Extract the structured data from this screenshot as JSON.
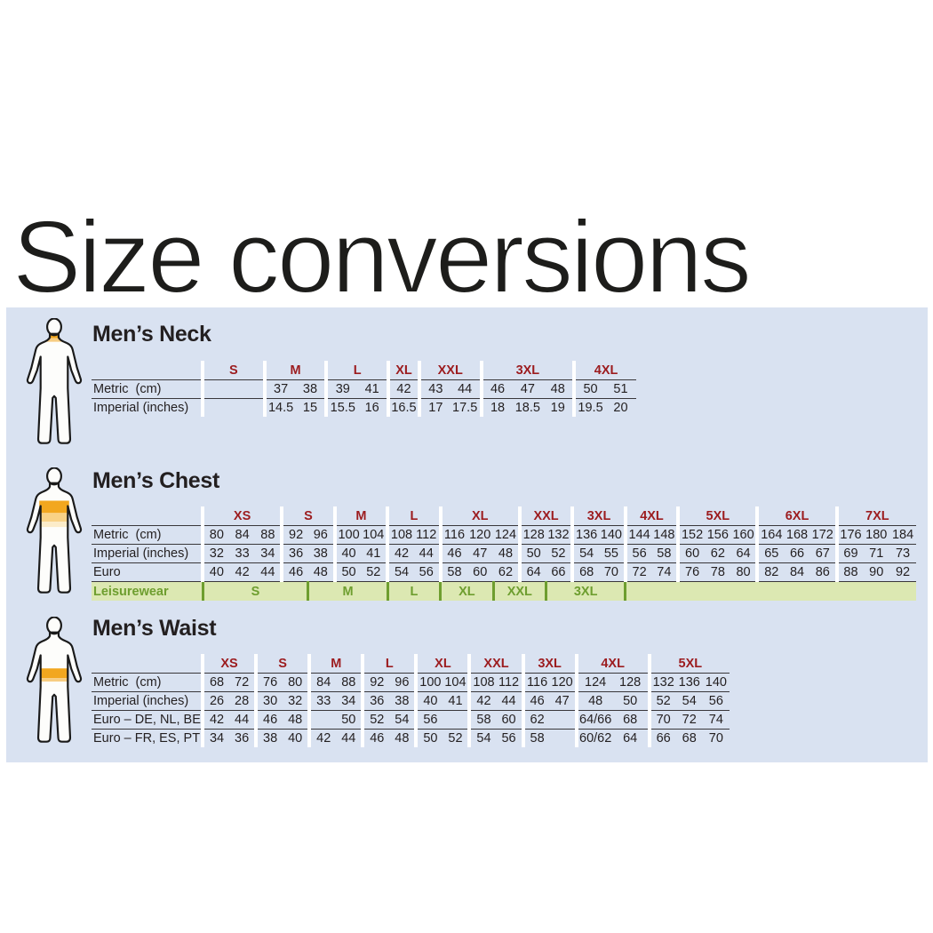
{
  "page": {
    "title": "Size conversions"
  },
  "colors": {
    "panel_bg": "#d9e2f1",
    "text": "#231f20",
    "size_group_header": "#9c1c1f",
    "leisurewear_text": "#6e9e2f",
    "leisurewear_bg": "#dce8b2",
    "highlight_orange": "#f2a71f"
  },
  "sections": [
    {
      "id": "neck",
      "heading": "Men’s Neck",
      "figure_icon": "male-figure-neck-highlight-icon",
      "groups": [
        {
          "label": "S",
          "span": 2
        },
        {
          "label": "M",
          "span": 2
        },
        {
          "label": "L",
          "span": 2
        },
        {
          "label": "XL",
          "span": 1
        },
        {
          "label": "XXL",
          "span": 2
        },
        {
          "label": "3XL",
          "span": 3
        },
        {
          "label": "4XL",
          "span": 2
        }
      ],
      "rows": [
        {
          "label": "Metric  (cm)",
          "values": [
            "",
            "",
            "37",
            "38",
            "39",
            "41",
            "42",
            "43",
            "44",
            "46",
            "47",
            "48",
            "50",
            "51"
          ]
        },
        {
          "label": "Imperial (inches)",
          "values": [
            "",
            "",
            "14.5",
            "15",
            "15.5",
            "16",
            "16.5",
            "17",
            "17.5",
            "18",
            "18.5",
            "19",
            "19.5",
            "20"
          ]
        }
      ]
    },
    {
      "id": "chest",
      "heading": "Men’s Chest",
      "figure_icon": "male-figure-chest-highlight-icon",
      "groups": [
        {
          "label": "XS",
          "span": 3
        },
        {
          "label": "S",
          "span": 2
        },
        {
          "label": "M",
          "span": 2
        },
        {
          "label": "L",
          "span": 2
        },
        {
          "label": "XL",
          "span": 3
        },
        {
          "label": "XXL",
          "span": 2
        },
        {
          "label": "3XL",
          "span": 2
        },
        {
          "label": "4XL",
          "span": 2
        },
        {
          "label": "5XL",
          "span": 3
        },
        {
          "label": "6XL",
          "span": 3
        },
        {
          "label": "7XL",
          "span": 3
        }
      ],
      "rows": [
        {
          "label": "Metric  (cm)",
          "values": [
            "80",
            "84",
            "88",
            "92",
            "96",
            "100",
            "104",
            "108",
            "112",
            "116",
            "120",
            "124",
            "128",
            "132",
            "136",
            "140",
            "144",
            "148",
            "152",
            "156",
            "160",
            "164",
            "168",
            "172",
            "176",
            "180",
            "184"
          ]
        },
        {
          "label": "Imperial (inches)",
          "values": [
            "32",
            "33",
            "34",
            "36",
            "38",
            "40",
            "41",
            "42",
            "44",
            "46",
            "47",
            "48",
            "50",
            "52",
            "54",
            "55",
            "56",
            "58",
            "60",
            "62",
            "64",
            "65",
            "66",
            "67",
            "69",
            "71",
            "73"
          ]
        },
        {
          "label": "Euro",
          "values": [
            "40",
            "42",
            "44",
            "46",
            "48",
            "50",
            "52",
            "54",
            "56",
            "58",
            "60",
            "62",
            "64",
            "66",
            "68",
            "70",
            "72",
            "74",
            "76",
            "78",
            "80",
            "82",
            "84",
            "86",
            "88",
            "90",
            "92"
          ]
        }
      ],
      "leisurewear": {
        "label": "Leisurewear",
        "bands": [
          {
            "label": "S",
            "span": 4
          },
          {
            "label": "M",
            "span": 3
          },
          {
            "label": "L",
            "span": 2
          },
          {
            "label": "XL",
            "span": 2
          },
          {
            "label": "XXL",
            "span": 2
          },
          {
            "label": "3XL",
            "span": 3
          },
          {
            "label": "",
            "span": 11
          }
        ]
      }
    },
    {
      "id": "waist",
      "heading": "Men’s Waist",
      "figure_icon": "male-figure-waist-highlight-icon",
      "groups": [
        {
          "label": "XS",
          "span": 2
        },
        {
          "label": "S",
          "span": 2
        },
        {
          "label": "M",
          "span": 2
        },
        {
          "label": "L",
          "span": 2
        },
        {
          "label": "XL",
          "span": 2
        },
        {
          "label": "XXL",
          "span": 2
        },
        {
          "label": "3XL",
          "span": 2
        },
        {
          "label": "4XL",
          "span": 2,
          "wide": true
        },
        {
          "label": "5XL",
          "span": 3
        }
      ],
      "rows": [
        {
          "label": "Metric  (cm)",
          "values": [
            "68",
            "72",
            "76",
            "80",
            "84",
            "88",
            "92",
            "96",
            "100",
            "104",
            "108",
            "112",
            "116",
            "120",
            "124",
            "128",
            "132",
            "136",
            "140"
          ]
        },
        {
          "label": "Imperial (inches)",
          "values": [
            "26",
            "28",
            "30",
            "32",
            "33",
            "34",
            "36",
            "38",
            "40",
            "41",
            "42",
            "44",
            "46",
            "47",
            "48",
            "50",
            "52",
            "54",
            "56"
          ]
        },
        {
          "label": "Euro – DE, NL, BE",
          "values": [
            "42",
            "44",
            "46",
            "48",
            "",
            "50",
            "52",
            "54",
            "56",
            "",
            "58",
            "60",
            "62",
            "",
            "64/66",
            "68",
            "70",
            "72",
            "74"
          ]
        },
        {
          "label": "Euro – FR, ES, PT",
          "values": [
            "34",
            "36",
            "38",
            "40",
            "42",
            "44",
            "46",
            "48",
            "50",
            "52",
            "54",
            "56",
            "58",
            "",
            "60/62",
            "64",
            "66",
            "68",
            "70"
          ]
        }
      ]
    }
  ]
}
